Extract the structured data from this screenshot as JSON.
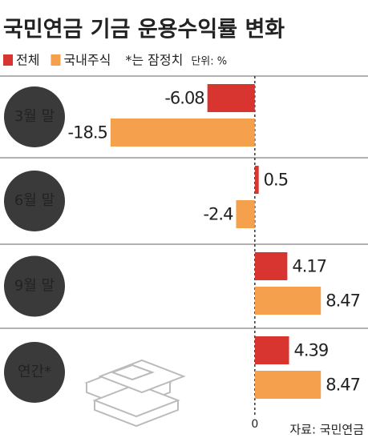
{
  "chart_data": {
    "type": "hbar",
    "title": "국민연금 기금 운용수익률 변화",
    "note": "*는 잠정치",
    "unit": "단위: %",
    "source": "자료: 국민연금",
    "categories": [
      "3월 말",
      "6월 말",
      "9월 말",
      "연간*"
    ],
    "series": [
      {
        "name": "전체",
        "color": "#d83430",
        "values": [
          -6.08,
          0.5,
          4.17,
          4.39
        ]
      },
      {
        "name": "국내주식",
        "color": "#f4a04c",
        "values": [
          -18.5,
          -2.4,
          8.47,
          8.47
        ]
      }
    ],
    "xlim": [
      -19,
      14
    ],
    "xticks": [
      0
    ]
  }
}
